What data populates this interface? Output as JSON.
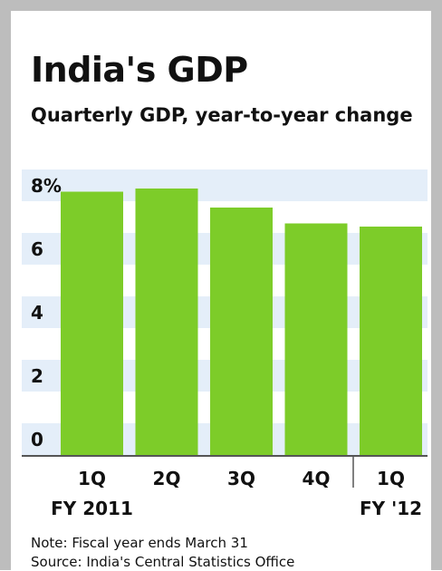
{
  "header": {
    "title": "India's GDP",
    "subtitle": "Quarterly GDP, year-to-year change"
  },
  "footer": {
    "note": "Note: Fiscal year ends March 31",
    "source": "Source: India's Central Statistics Office"
  },
  "colors": {
    "bar": "#7dcc29",
    "band": "#e4eef9",
    "axis": "#555555",
    "frame": "#bdbdbd"
  },
  "chart_data": {
    "type": "bar",
    "title": "India's GDP",
    "subtitle": "Quarterly GDP, year-to-year change",
    "categories": [
      "1Q",
      "2Q",
      "3Q",
      "4Q",
      "1Q"
    ],
    "category_sublabels": [
      "FY 2011",
      "",
      "",
      "",
      "FY '12"
    ],
    "values": [
      8.3,
      8.4,
      7.8,
      7.3,
      7.2
    ],
    "yticks": [
      "0",
      "2",
      "4",
      "6",
      "8%"
    ],
    "ytick_values": [
      0,
      2,
      4,
      6,
      8
    ],
    "ylim": [
      0,
      9
    ],
    "xlabel": "",
    "ylabel": "",
    "grid": "alternating horizontal bands",
    "legend": "none"
  }
}
